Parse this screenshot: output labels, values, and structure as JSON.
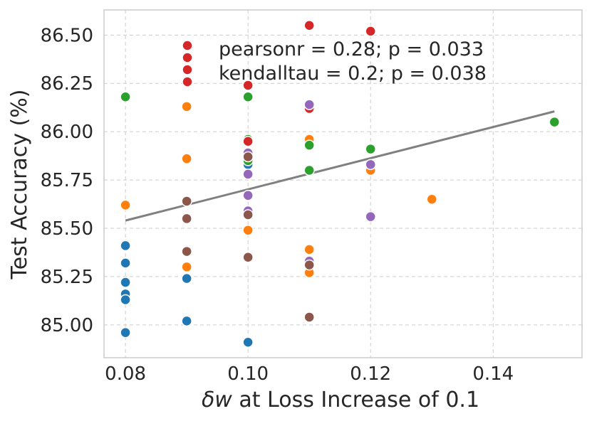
{
  "chart_data": {
    "type": "scatter",
    "title": "",
    "xlabel": {
      "prefix_symbol": "δw",
      "rest": " at Loss Increase of 0.1"
    },
    "ylabel": "Test Accuracy (%)",
    "xlim": [
      0.0765,
      0.1545
    ],
    "ylim": [
      84.83,
      86.63
    ],
    "xticks": [
      0.08,
      0.1,
      0.12,
      0.14
    ],
    "xtick_labels": [
      "0.08",
      "0.10",
      "0.12",
      "0.14"
    ],
    "yticks": [
      85.0,
      85.25,
      85.5,
      85.75,
      86.0,
      86.25,
      86.5
    ],
    "ytick_labels": [
      "85.00",
      "85.25",
      "85.50",
      "85.75",
      "86.00",
      "86.25",
      "86.50"
    ],
    "grid": true,
    "legend": {
      "position": "top-center",
      "entries": [
        {
          "label": "pearsonr = 0.28; p = 0.033",
          "color": "#d62728"
        },
        {
          "label": "kendalltau = 0.2; p = 0.038",
          "color": "#d62728"
        }
      ]
    },
    "trend_line": {
      "color": "#808080",
      "x": [
        0.08,
        0.15
      ],
      "y": [
        85.54,
        86.105
      ]
    },
    "series": [
      {
        "name": "blue",
        "color": "#1f77b4",
        "points": [
          [
            0.08,
            85.41
          ],
          [
            0.08,
            85.32
          ],
          [
            0.08,
            85.22
          ],
          [
            0.08,
            85.16
          ],
          [
            0.08,
            85.13
          ],
          [
            0.08,
            84.96
          ],
          [
            0.09,
            85.24
          ],
          [
            0.09,
            85.02
          ],
          [
            0.1,
            85.83
          ],
          [
            0.1,
            84.91
          ]
        ]
      },
      {
        "name": "orange",
        "color": "#ff7f0e",
        "points": [
          [
            0.08,
            85.62
          ],
          [
            0.09,
            86.13
          ],
          [
            0.09,
            85.86
          ],
          [
            0.09,
            85.3
          ],
          [
            0.1,
            85.49
          ],
          [
            0.11,
            85.96
          ],
          [
            0.11,
            85.39
          ],
          [
            0.11,
            85.27
          ],
          [
            0.12,
            85.8
          ],
          [
            0.13,
            85.65
          ]
        ]
      },
      {
        "name": "green",
        "color": "#2ca02c",
        "points": [
          [
            0.08,
            86.18
          ],
          [
            0.1,
            86.18
          ],
          [
            0.1,
            85.96
          ],
          [
            0.1,
            85.85
          ],
          [
            0.11,
            85.93
          ],
          [
            0.11,
            85.8
          ],
          [
            0.12,
            85.91
          ],
          [
            0.15,
            86.05
          ]
        ]
      },
      {
        "name": "red",
        "color": "#d62728",
        "points": [
          [
            0.1,
            86.24
          ],
          [
            0.1,
            85.95
          ],
          [
            0.11,
            86.55
          ],
          [
            0.11,
            86.12
          ],
          [
            0.12,
            86.52
          ]
        ]
      },
      {
        "name": "purple",
        "color": "#9467bd",
        "points": [
          [
            0.1,
            85.89
          ],
          [
            0.1,
            85.78
          ],
          [
            0.1,
            85.67
          ],
          [
            0.1,
            85.59
          ],
          [
            0.11,
            86.14
          ],
          [
            0.11,
            85.33
          ],
          [
            0.12,
            85.83
          ],
          [
            0.12,
            85.56
          ]
        ]
      },
      {
        "name": "brown",
        "color": "#8c564b",
        "points": [
          [
            0.09,
            85.64
          ],
          [
            0.09,
            85.55
          ],
          [
            0.09,
            85.38
          ],
          [
            0.1,
            85.87
          ],
          [
            0.1,
            85.57
          ],
          [
            0.1,
            85.35
          ],
          [
            0.11,
            85.31
          ],
          [
            0.11,
            85.04
          ]
        ]
      }
    ]
  }
}
